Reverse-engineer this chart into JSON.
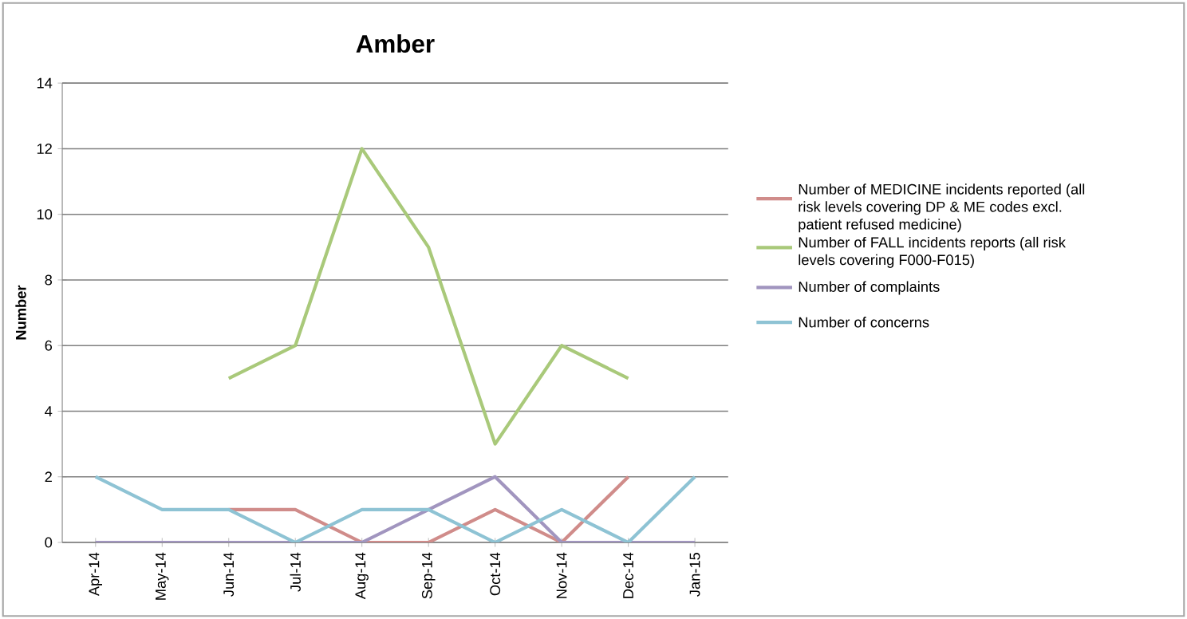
{
  "chart_data": {
    "type": "line",
    "title": "Amber",
    "ylabel": "Number",
    "categories": [
      "Apr-14",
      "May-14",
      "Jun-14",
      "Jul-14",
      "Aug-14",
      "Sep-14",
      "Oct-14",
      "Nov-14",
      "Dec-14",
      "Jan-15"
    ],
    "series": [
      {
        "name": "Number of MEDICINE incidents reported (all risk levels covering DP & ME codes excl. patient refused medicine)",
        "color": "#d08c8a",
        "values": [
          null,
          null,
          1,
          1,
          0,
          0,
          1,
          0,
          2,
          null
        ]
      },
      {
        "name": "Number of FALL incidents reports (all risk levels covering F000-F015)",
        "color": "#a9c97a",
        "values": [
          null,
          null,
          5,
          6,
          12,
          9,
          3,
          6,
          5,
          null
        ]
      },
      {
        "name": "Number of complaints",
        "color": "#a195bf",
        "values": [
          0,
          0,
          0,
          0,
          0,
          1,
          2,
          0,
          0,
          0
        ]
      },
      {
        "name": "Number of concerns",
        "color": "#8ec3d4",
        "values": [
          2,
          1,
          1,
          0,
          1,
          1,
          0,
          1,
          0,
          2
        ]
      }
    ],
    "ylim": [
      0,
      14
    ],
    "yticks": [
      0,
      2,
      4,
      6,
      8,
      10,
      12,
      14
    ],
    "grid": "y",
    "legend": "right",
    "marker": "none",
    "line_style": "solid"
  }
}
